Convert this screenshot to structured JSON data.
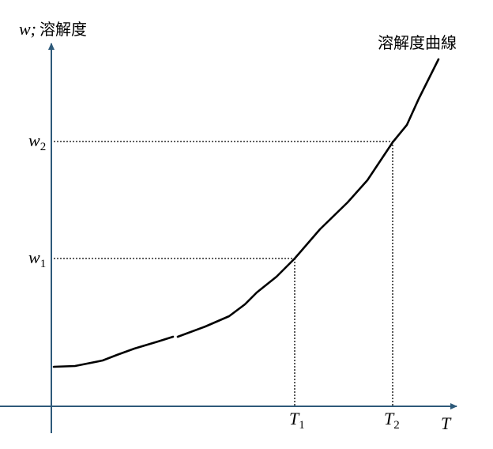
{
  "axis_labels": {
    "y": {
      "symbol": "w;",
      "text": "溶解度"
    },
    "x": "T"
  },
  "curve_label": "溶解度曲線",
  "levels": [
    {
      "symbol": "w",
      "subscript": "1"
    },
    {
      "symbol": "w",
      "subscript": "2"
    }
  ],
  "temperatures": [
    {
      "symbol": "T",
      "subscript": "1"
    },
    {
      "symbol": "T",
      "subscript": "2"
    }
  ]
}
